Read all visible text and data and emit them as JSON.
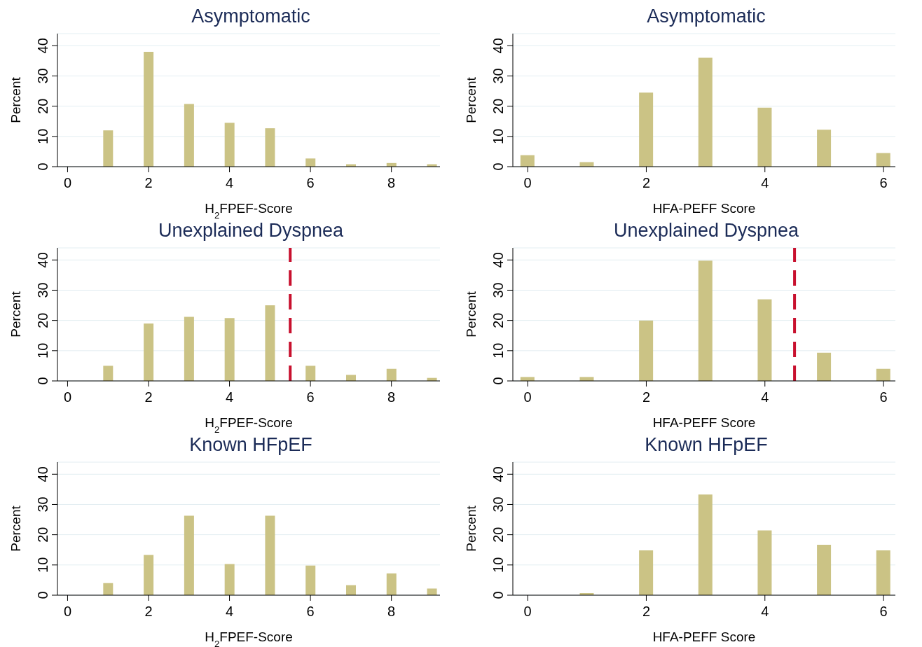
{
  "chart_data": [
    {
      "type": "bar",
      "title": "Asymptomatic",
      "xlabel": "H$_{2}$FPEF-Score",
      "ylabel": "Percent",
      "color": "#cbc385",
      "grid": "y",
      "x": [
        1,
        2,
        3,
        4,
        5,
        6,
        7,
        8,
        9
      ],
      "values": [
        12,
        38,
        20.7,
        14.5,
        12.7,
        2.7,
        0.8,
        1.2,
        0.8
      ],
      "xlim": [
        -0.25,
        9.2
      ],
      "xticks": [
        0,
        2,
        4,
        6,
        8
      ],
      "ylim": [
        0,
        44
      ],
      "yticks": [
        0,
        10,
        20,
        30,
        40
      ]
    },
    {
      "type": "bar",
      "title": "Asymptomatic",
      "xlabel": "HFA-PEFF Score",
      "ylabel": "Percent",
      "color": "#cbc385",
      "grid": "y",
      "x": [
        0,
        1,
        2,
        3,
        4,
        5,
        6
      ],
      "values": [
        3.8,
        1.5,
        24.5,
        36,
        19.5,
        12.2,
        4.5
      ],
      "xlim": [
        -0.25,
        6.2
      ],
      "xticks": [
        0,
        2,
        4,
        6
      ],
      "ylim": [
        0,
        44
      ],
      "yticks": [
        0,
        10,
        20,
        30,
        40
      ]
    },
    {
      "type": "bar",
      "title": "Unexplained Dyspnea",
      "xlabel": "H$_{2}$FPEF-Score",
      "ylabel": "Percent",
      "color": "#cbc385",
      "grid": "y",
      "x": [
        1,
        2,
        3,
        4,
        5,
        6,
        7,
        8,
        9
      ],
      "values": [
        5,
        19,
        21.2,
        20.8,
        25,
        5,
        2,
        4,
        1
      ],
      "xlim": [
        -0.25,
        9.2
      ],
      "xticks": [
        0,
        2,
        4,
        6,
        8
      ],
      "ylim": [
        0,
        44
      ],
      "yticks": [
        0,
        10,
        20,
        30,
        40
      ],
      "ref_lines": [
        {
          "axis": "x",
          "value": 5.5,
          "color": "#c8102e",
          "line_style": "dashed"
        }
      ]
    },
    {
      "type": "bar",
      "title": "Unexplained Dyspnea",
      "xlabel": "HFA-PEFF Score",
      "ylabel": "Percent",
      "color": "#cbc385",
      "grid": "y",
      "x": [
        0,
        1,
        2,
        3,
        4,
        5,
        6
      ],
      "values": [
        1.3,
        1.3,
        20,
        39.8,
        27,
        9.3,
        4
      ],
      "xlim": [
        -0.25,
        6.2
      ],
      "xticks": [
        0,
        2,
        4,
        6
      ],
      "ylim": [
        0,
        44
      ],
      "yticks": [
        0,
        10,
        20,
        30,
        40
      ],
      "ref_lines": [
        {
          "axis": "x",
          "value": 4.5,
          "color": "#c8102e",
          "line_style": "dashed"
        }
      ]
    },
    {
      "type": "bar",
      "title": "Known HFpEF",
      "xlabel": "H$_{2}$FPEF-Score",
      "ylabel": "Percent",
      "color": "#cbc385",
      "grid": "y",
      "x": [
        1,
        2,
        3,
        4,
        5,
        6,
        7,
        8,
        9
      ],
      "values": [
        4,
        13.3,
        26.3,
        10.3,
        26.3,
        9.8,
        3.3,
        7.2,
        2.2
      ],
      "xlim": [
        -0.25,
        9.2
      ],
      "xticks": [
        0,
        2,
        4,
        6,
        8
      ],
      "ylim": [
        0,
        44
      ],
      "yticks": [
        0,
        10,
        20,
        30,
        40
      ]
    },
    {
      "type": "bar",
      "title": "Known HFpEF",
      "xlabel": "HFA-PEFF Score",
      "ylabel": "Percent",
      "color": "#cbc385",
      "grid": "y",
      "x": [
        1,
        2,
        3,
        4,
        5,
        6
      ],
      "values": [
        0.7,
        14.8,
        33.3,
        21.4,
        16.7,
        14.8
      ],
      "xlim": [
        -0.25,
        6.2
      ],
      "xticks": [
        0,
        2,
        4,
        6
      ],
      "ylim": [
        0,
        44
      ],
      "yticks": [
        0,
        10,
        20,
        30,
        40
      ]
    }
  ]
}
